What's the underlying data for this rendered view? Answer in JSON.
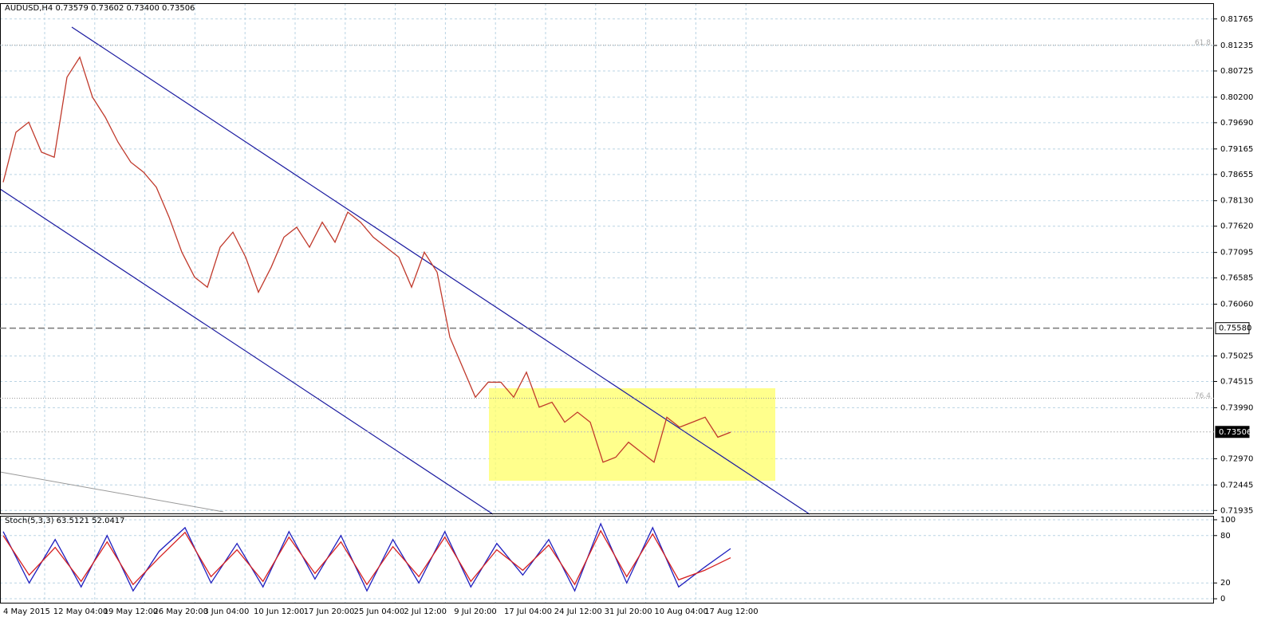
{
  "header": "AUDUSD,H4  0.73579 0.73602 0.73400 0.73506",
  "x_labels": [
    "4 May 2015",
    "12 May 04:00",
    "19 May 12:00",
    "26 May 20:00",
    "3 Jun 04:00",
    "10 Jun 12:00",
    "17 Jun 20:00",
    "25 Jun 04:00",
    "2 Jul 12:00",
    "9 Jul 20:00",
    "17 Jul 04:00",
    "24 Jul 12:00",
    "31 Jul 20:00",
    "10 Aug 04:00",
    "17 Aug 12:00"
  ],
  "chart_data": [
    {
      "type": "line",
      "color": "#c0392b",
      "values": [
        0.785,
        0.795,
        0.797,
        0.791,
        0.79,
        0.806,
        0.81,
        0.802,
        0.798,
        0.793,
        0.789,
        0.787,
        0.784,
        0.778,
        0.771,
        0.766,
        0.764,
        0.772,
        0.775,
        0.77,
        0.763,
        0.768,
        0.774,
        0.776,
        0.772,
        0.777,
        0.773,
        0.779,
        0.777,
        0.774,
        0.772,
        0.77,
        0.764,
        0.771,
        0.767,
        0.754,
        0.748,
        0.742,
        0.745,
        0.745,
        0.742,
        0.747,
        0.74,
        0.741,
        0.737,
        0.739,
        0.737,
        0.729,
        0.73,
        0.733,
        0.731,
        0.729,
        0.738,
        0.736,
        0.737,
        0.738,
        0.734,
        0.735
      ],
      "ylim": [
        0.7186,
        0.8208
      ],
      "yticks": [
        0.81765,
        0.81235,
        0.80725,
        {
          "value": 0.802,
          "label": "0.80200"
        },
        {
          "value": 0.7969,
          "label": "0.79690"
        },
        0.79165,
        0.78655,
        {
          "value": 0.7813,
          "label": "0.78130"
        },
        {
          "value": 0.7762,
          "label": "0.77620"
        },
        0.77095,
        0.76585,
        {
          "value": 0.7606,
          "label": "0.76060"
        },
        0.75025,
        0.74515,
        {
          "value": 0.7399,
          "label": "0.73990"
        },
        {
          "value": 0.7297,
          "label": "0.72970"
        },
        0.72445,
        0.71935
      ],
      "price_lines": [
        {
          "value": 0.7558,
          "label": "0.75580"
        },
        {
          "value": 0.73506,
          "label": "0.73506"
        }
      ],
      "levels": [
        {
          "value": 0.8124,
          "label": "61.8"
        },
        {
          "value": 0.7418,
          "label": "76.4"
        }
      ],
      "grid": true
    },
    {
      "type": "line",
      "title": "Stoch(5,3,3) 63.5121 52.0417",
      "series": [
        {
          "color": "#1f1fbf",
          "values": [
            85,
            20,
            75,
            15,
            80,
            10,
            60,
            90,
            20,
            70,
            15,
            85,
            25,
            80,
            10,
            75,
            20,
            85,
            15,
            70,
            30,
            75,
            10,
            95,
            20,
            90,
            15,
            40,
            63.5
          ]
        },
        {
          "color": "#d62020",
          "values": [
            80,
            30,
            65,
            22,
            72,
            18,
            52,
            84,
            28,
            62,
            22,
            78,
            32,
            72,
            18,
            66,
            28,
            78,
            22,
            62,
            36,
            68,
            18,
            86,
            28,
            82,
            24,
            36,
            52
          ]
        }
      ],
      "ylim": [
        -6,
        105
      ],
      "yticks": [
        0,
        20,
        80,
        100
      ],
      "grid": true
    }
  ]
}
